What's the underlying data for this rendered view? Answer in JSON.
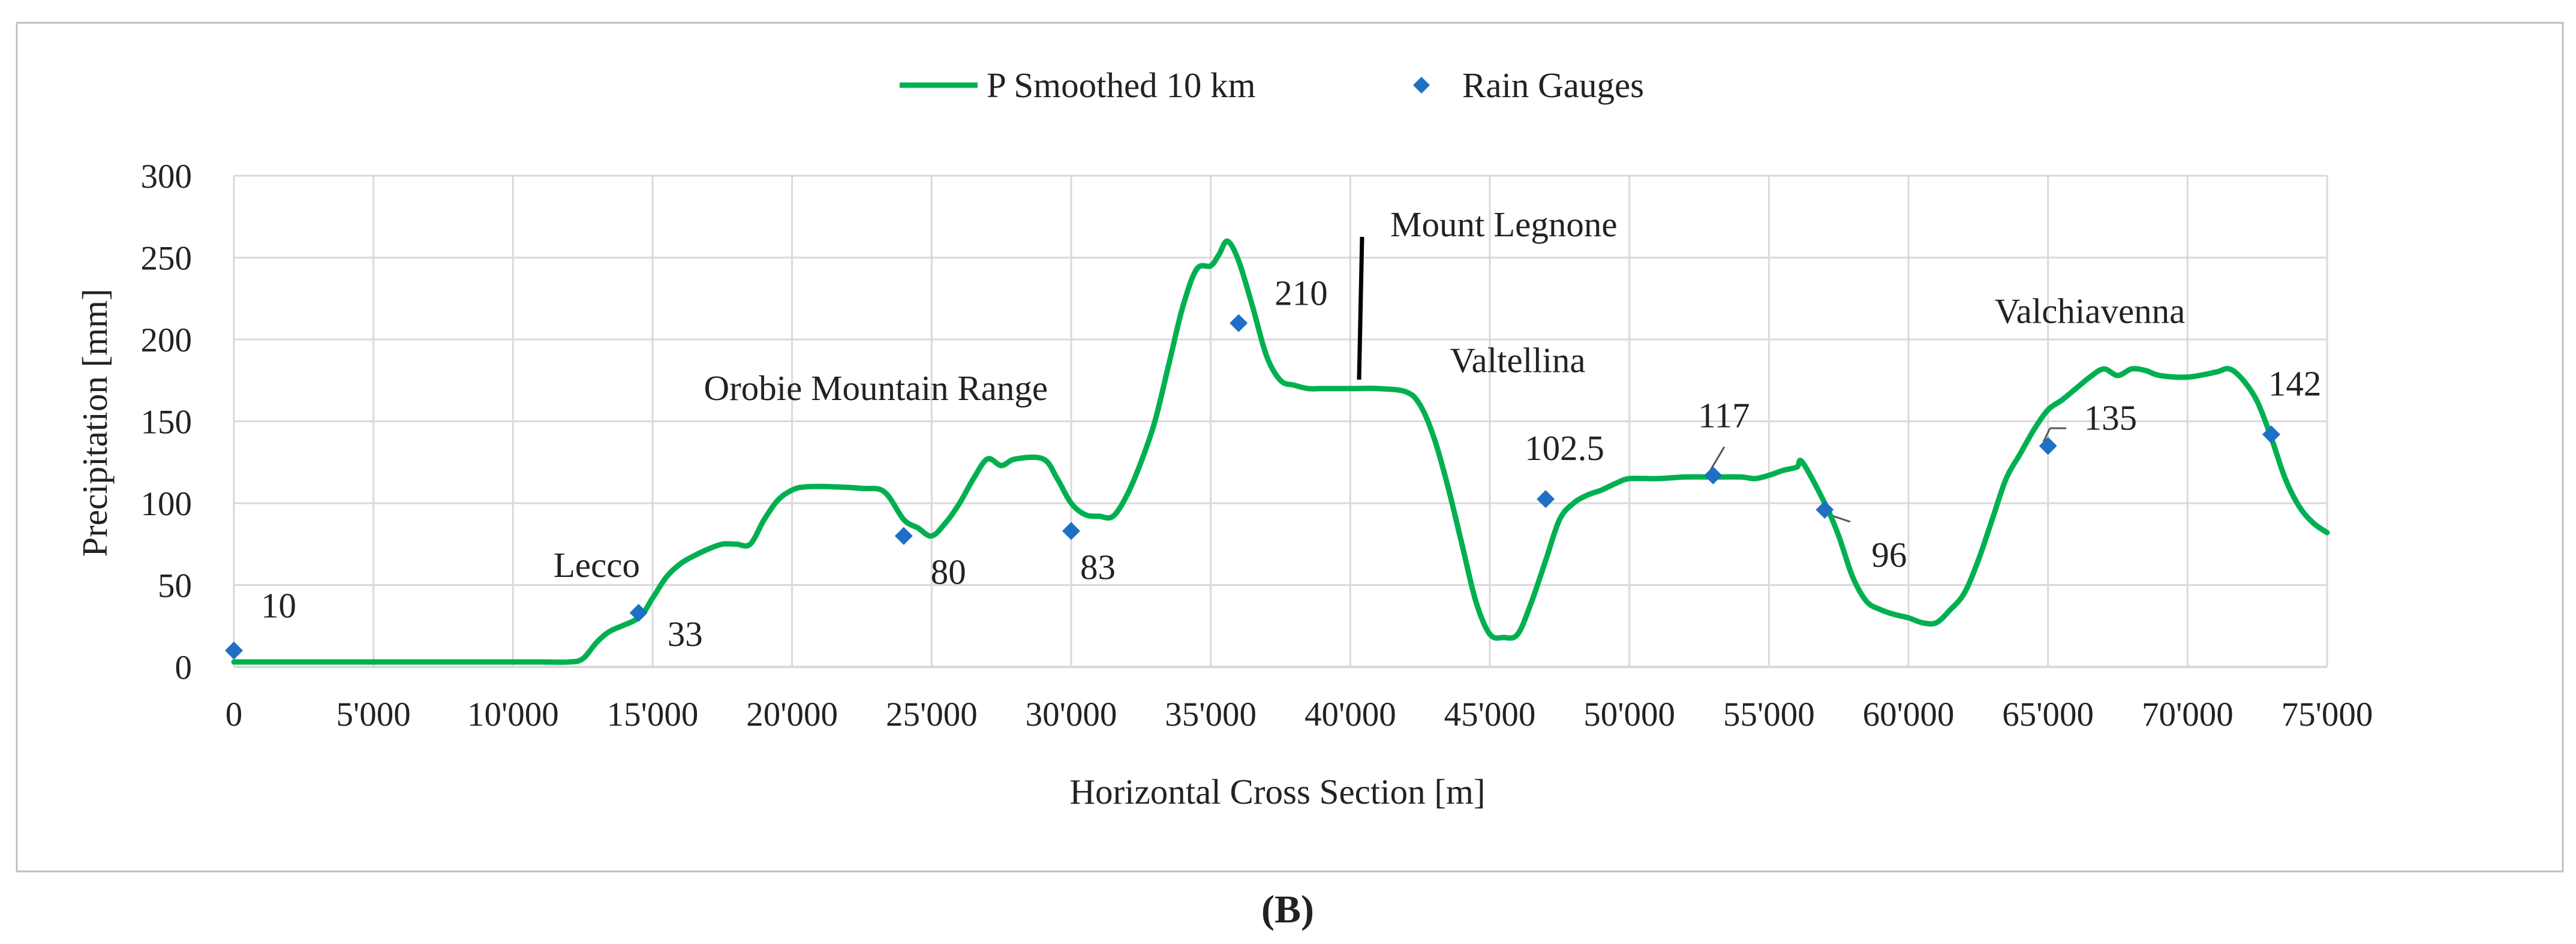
{
  "chart_data": {
    "type": "line",
    "panel_label": "(B)",
    "xlabel": "Horizontal Cross Section [m]",
    "ylabel": "Precipitation [mm]",
    "xlim": [
      0,
      75000
    ],
    "ylim": [
      0,
      300
    ],
    "grid": true,
    "legend_position": "top-center",
    "x_ticks": [
      0,
      5000,
      10000,
      15000,
      20000,
      25000,
      30000,
      35000,
      40000,
      45000,
      50000,
      55000,
      60000,
      65000,
      70000,
      75000
    ],
    "x_tick_labels": [
      "0",
      "5'000",
      "10'000",
      "15'000",
      "20'000",
      "25'000",
      "30'000",
      "35'000",
      "40'000",
      "45'000",
      "50'000",
      "55'000",
      "60'000",
      "65'000",
      "70'000",
      "75'000"
    ],
    "y_ticks": [
      0,
      50,
      100,
      150,
      200,
      250,
      300
    ],
    "y_tick_labels": [
      "0",
      "50",
      "100",
      "150",
      "200",
      "250",
      "300"
    ],
    "series": [
      {
        "name": "P Smoothed 10 km",
        "type": "line",
        "color": "#00b050",
        "x": [
          0,
          3000,
          6000,
          9000,
          11000,
          12000,
          12500,
          13000,
          13500,
          14500,
          15000,
          15500,
          16000,
          16500,
          17000,
          17500,
          18000,
          18500,
          19000,
          19500,
          20000,
          20500,
          21500,
          22500,
          23300,
          24000,
          24500,
          25000,
          25500,
          26000,
          26500,
          27000,
          27500,
          28000,
          29000,
          29500,
          30000,
          30500,
          31000,
          31500,
          32000,
          32500,
          33000,
          33500,
          34000,
          34500,
          35000,
          35300,
          35600,
          36000,
          36500,
          37000,
          37500,
          38000,
          38500,
          39000,
          40000,
          41000,
          42000,
          42500,
          43000,
          43500,
          44000,
          44500,
          45000,
          45500,
          46000,
          46500,
          47000,
          47500,
          48000,
          48500,
          49000,
          49500,
          50000,
          51000,
          52000,
          53000,
          54000,
          54500,
          55000,
          55500,
          56000,
          56200,
          57000,
          57500,
          58000,
          58500,
          59000,
          59500,
          60000,
          60500,
          61000,
          61500,
          62000,
          62500,
          63000,
          63500,
          64000,
          64500,
          65000,
          65500,
          66000,
          66500,
          67000,
          67500,
          68000,
          68500,
          69000,
          70000,
          71000,
          71500,
          72000,
          72500,
          73000,
          73500,
          74000,
          74500,
          75000
        ],
        "values": [
          3,
          3,
          3,
          3,
          3,
          3,
          5,
          15,
          22,
          30,
          42,
          55,
          63,
          68,
          72,
          75,
          75,
          75,
          90,
          102,
          108,
          110,
          110,
          109,
          107,
          90,
          85,
          80,
          88,
          100,
          115,
          127,
          123,
          127,
          127,
          115,
          100,
          93,
          92,
          92,
          105,
          125,
          150,
          185,
          220,
          243,
          245,
          252,
          260,
          248,
          220,
          190,
          175,
          172,
          170,
          170,
          170,
          170,
          168,
          160,
          140,
          110,
          75,
          40,
          20,
          18,
          20,
          40,
          65,
          90,
          100,
          105,
          108,
          112,
          115,
          115,
          116,
          116,
          116,
          115,
          117,
          120,
          122,
          125,
          100,
          80,
          55,
          40,
          35,
          32,
          30,
          27,
          27,
          35,
          45,
          65,
          90,
          115,
          130,
          145,
          157,
          163,
          170,
          177,
          182,
          178,
          182,
          181,
          178,
          177,
          180,
          182,
          175,
          162,
          140,
          115,
          98,
          88,
          82
        ]
      },
      {
        "name": "Rain Gauges",
        "type": "scatter",
        "color": "#1f6fc5",
        "x": [
          0,
          14500,
          24000,
          30000,
          36000,
          47000,
          53000,
          57000,
          65000,
          73000
        ],
        "values": [
          10,
          33,
          80,
          83,
          210,
          102.5,
          117,
          96,
          135,
          142
        ],
        "labels": [
          "10",
          "33",
          "80",
          "83",
          "210",
          "102.5",
          "117",
          "96",
          "135",
          "142"
        ]
      }
    ],
    "annotations": [
      {
        "text": "Lecco",
        "x": 13000,
        "y": 55
      },
      {
        "text": "Orobie Mountain Range",
        "x": 23000,
        "y": 163
      },
      {
        "text": "Mount Legnone",
        "x": 45500,
        "y": 263
      },
      {
        "text": "Valtellina",
        "x": 46000,
        "y": 180
      },
      {
        "text": "Valchiavenna",
        "x": 66500,
        "y": 210
      }
    ]
  }
}
